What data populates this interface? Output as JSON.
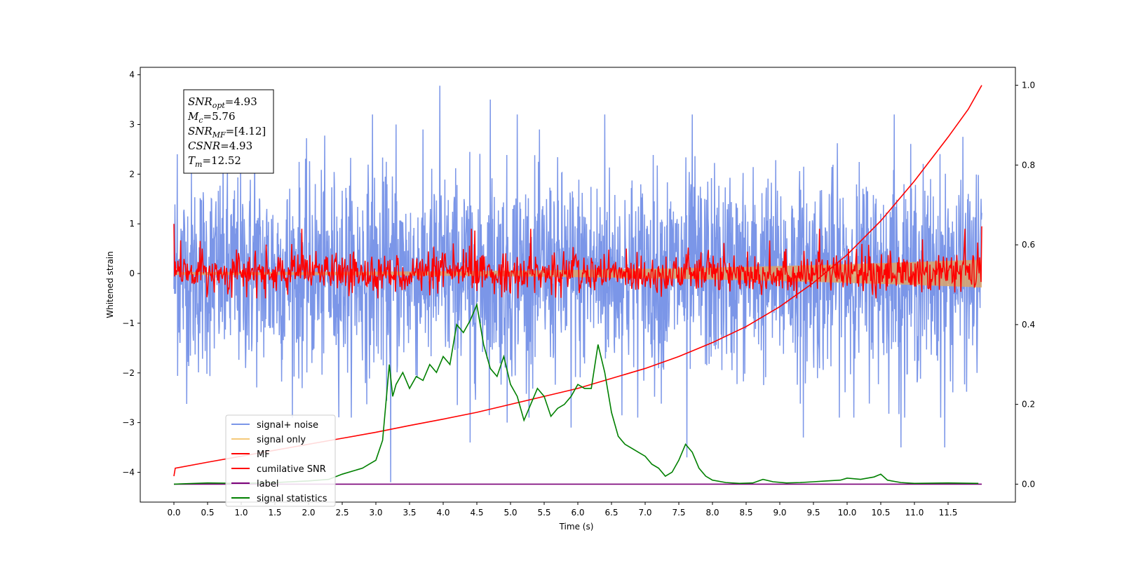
{
  "chart_data": {
    "type": "line",
    "xlabel": "Time (s)",
    "ylabel": "Whitened strain",
    "xlim": [
      -0.5,
      12.5
    ],
    "ylim": [
      -4.6,
      4.15
    ],
    "y2lim": [
      -0.045,
      1.045
    ],
    "x_ticks": [
      0.0,
      0.5,
      1.0,
      1.5,
      2.0,
      2.5,
      3.0,
      3.5,
      4.0,
      4.5,
      5.0,
      5.5,
      6.0,
      6.5,
      7.0,
      7.5,
      8.0,
      8.5,
      9.0,
      9.5,
      10.0,
      10.5,
      11.0,
      11.5
    ],
    "x_tick_labels": [
      "0.0",
      "0.5",
      "1.0",
      "1.5",
      "2.0",
      "2.5",
      "3.0",
      "3.5",
      "4.0",
      "4.5",
      "5.0",
      "5.5",
      "6.0",
      "6.5",
      "7.0",
      "7.5",
      "8.0",
      "8.5",
      "9.0",
      "9.5",
      "10.0",
      "10.5",
      "11.0",
      "11.5"
    ],
    "y_ticks": [
      4,
      3,
      2,
      1,
      0,
      -1,
      -2,
      -3,
      -4
    ],
    "y_tick_labels": [
      "4",
      "3",
      "2",
      "1",
      "0",
      "−1",
      "−2",
      "−3",
      "−4"
    ],
    "y2_ticks": [
      1.0,
      0.8,
      0.6,
      0.4,
      0.2,
      0.0
    ],
    "y2_tick_labels": [
      "1.0",
      "0.8",
      "0.6",
      "0.4",
      "0.2",
      "0.0"
    ],
    "legend_position": "lower-left",
    "annotation": {
      "lines": [
        {
          "main": "SNR",
          "sub": "opt",
          "rest": "=4.93"
        },
        {
          "main": "M",
          "sub": "c",
          "rest": "=5.76"
        },
        {
          "main": "SNR",
          "sub": "MF",
          "rest": "=[4.12]"
        },
        {
          "main": "CSNR",
          "sub": "",
          "rest": "=4.93"
        },
        {
          "main": "T",
          "sub": "m",
          "rest": "=12.52"
        }
      ]
    },
    "series": [
      {
        "name": "signal+ noise",
        "color": "#7b96e8",
        "axis": "left",
        "style": "noise",
        "x_range": [
          0,
          12.0
        ],
        "amplitude": 1.0,
        "spikes": [
          [
            0.05,
            2.4
          ],
          [
            1.2,
            2.5
          ],
          [
            2.95,
            3.2
          ],
          [
            3.3,
            3.0
          ],
          [
            3.95,
            3.78
          ],
          [
            4.7,
            3.5
          ],
          [
            5.1,
            3.2
          ],
          [
            6.4,
            3.2
          ],
          [
            7.7,
            3.2
          ],
          [
            10.7,
            3.2
          ],
          [
            3.22,
            -4.2
          ],
          [
            4.4,
            -3.4
          ],
          [
            5.9,
            -3.1
          ],
          [
            7.62,
            -3.7
          ],
          [
            9.35,
            -3.3
          ],
          [
            10.8,
            -3.5
          ],
          [
            11.45,
            -3.5
          ],
          [
            4.95,
            -3.0
          ]
        ]
      },
      {
        "name": "signal only",
        "color": "#f5c97a",
        "axis": "left",
        "style": "envelope",
        "x_range": [
          0,
          12.0
        ],
        "amp_start": 0.03,
        "amp_end": 0.28
      },
      {
        "name": "MF",
        "color": "#ff0000",
        "axis": "left",
        "style": "mf",
        "x_range": [
          0,
          12.0
        ],
        "start": 1.0,
        "end": 0.95
      },
      {
        "name": "cumilative SNR",
        "color": "#ff0000",
        "axis": "right",
        "style": "line",
        "x": [
          0,
          0.02,
          0.5,
          1,
          1.5,
          2,
          2.5,
          3,
          3.5,
          4,
          4.5,
          5,
          5.5,
          6,
          6.5,
          7,
          7.5,
          8,
          8.5,
          9,
          9.5,
          10,
          10.5,
          11,
          11.5,
          11.8,
          12
        ],
        "y": [
          0.02,
          0.04,
          0.055,
          0.07,
          0.085,
          0.1,
          0.115,
          0.13,
          0.147,
          0.163,
          0.18,
          0.2,
          0.22,
          0.24,
          0.265,
          0.29,
          0.32,
          0.355,
          0.395,
          0.445,
          0.505,
          0.575,
          0.66,
          0.76,
          0.87,
          0.94,
          1.0
        ]
      },
      {
        "name": "label",
        "color": "#7a0078",
        "axis": "right",
        "style": "line",
        "x": [
          0,
          12
        ],
        "y": [
          0.0,
          0.0
        ]
      },
      {
        "name": "signal statistics",
        "color": "#008000",
        "axis": "right",
        "style": "line",
        "x": [
          0,
          0.5,
          1,
          1.5,
          2,
          2.3,
          2.5,
          2.7,
          2.8,
          2.9,
          3.0,
          3.1,
          3.2,
          3.25,
          3.3,
          3.4,
          3.5,
          3.6,
          3.7,
          3.8,
          3.9,
          4.0,
          4.1,
          4.2,
          4.3,
          4.4,
          4.5,
          4.6,
          4.7,
          4.8,
          4.9,
          5.0,
          5.1,
          5.2,
          5.3,
          5.4,
          5.5,
          5.6,
          5.7,
          5.8,
          5.9,
          6.0,
          6.1,
          6.2,
          6.3,
          6.4,
          6.5,
          6.6,
          6.7,
          6.8,
          6.9,
          7.0,
          7.1,
          7.2,
          7.3,
          7.4,
          7.5,
          7.6,
          7.7,
          7.8,
          7.9,
          8.0,
          8.2,
          8.4,
          8.6,
          8.75,
          8.9,
          9.1,
          9.3,
          9.5,
          9.7,
          9.9,
          10.0,
          10.2,
          10.4,
          10.5,
          10.6,
          10.8,
          11.0,
          11.5,
          11.95
        ],
        "y": [
          0.0,
          0.003,
          0.002,
          0.004,
          0.008,
          0.012,
          0.025,
          0.035,
          0.04,
          0.05,
          0.06,
          0.11,
          0.3,
          0.22,
          0.25,
          0.28,
          0.24,
          0.27,
          0.26,
          0.3,
          0.28,
          0.32,
          0.3,
          0.4,
          0.38,
          0.41,
          0.45,
          0.35,
          0.29,
          0.27,
          0.32,
          0.25,
          0.22,
          0.16,
          0.2,
          0.24,
          0.22,
          0.17,
          0.19,
          0.2,
          0.22,
          0.25,
          0.24,
          0.24,
          0.35,
          0.28,
          0.18,
          0.12,
          0.1,
          0.09,
          0.08,
          0.07,
          0.05,
          0.04,
          0.02,
          0.03,
          0.06,
          0.1,
          0.08,
          0.04,
          0.02,
          0.01,
          0.004,
          0.002,
          0.003,
          0.012,
          0.006,
          0.003,
          0.004,
          0.006,
          0.008,
          0.01,
          0.015,
          0.012,
          0.018,
          0.025,
          0.01,
          0.004,
          0.002,
          0.003,
          0.002
        ]
      }
    ]
  }
}
